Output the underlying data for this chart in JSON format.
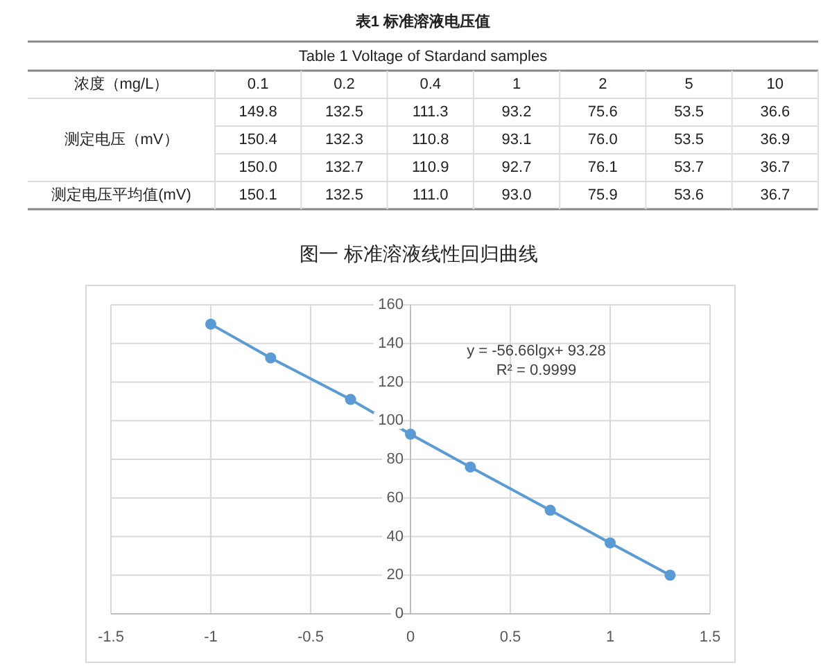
{
  "chart_data": [
    {
      "type": "heatmap",
      "title": "表1 标准溶液电压值",
      "subtitle": "Table 1  Voltage of Stardand samples",
      "xlabel": "浓度（mg/L）",
      "categories": [
        "0.1",
        "0.2",
        "0.4",
        "1",
        "2",
        "5",
        "10"
      ],
      "y_categories": [
        null,
        "测定电压（mV）",
        null,
        "测定电压平均值(mV)"
      ],
      "cells": [
        [
          149.8,
          132.5,
          111.3,
          93.2,
          75.6,
          53.5,
          36.6
        ],
        [
          150.4,
          132.3,
          110.8,
          93.1,
          76.0,
          53.5,
          36.9
        ],
        [
          150.0,
          132.7,
          110.9,
          92.7,
          76.1,
          53.7,
          36.7
        ],
        [
          150.1,
          132.5,
          111.0,
          93.0,
          75.9,
          53.6,
          36.7
        ]
      ],
      "cell_labels": [
        [
          "149.8",
          "132.5",
          "111.3",
          "93.2",
          "75.6",
          "53.5",
          "36.6"
        ],
        [
          "150.4",
          "132.3",
          "110.8",
          "93.1",
          "76.0",
          "53.5",
          "36.9"
        ],
        [
          "150.0",
          "132.7",
          "110.9",
          "92.7",
          "76.1",
          "53.7",
          "36.7"
        ],
        [
          "150.1",
          "132.5",
          "111.0",
          "93.0",
          "75.9",
          "53.6",
          "36.7"
        ]
      ],
      "data_labels": true
    },
    {
      "type": "line",
      "title": "图一  标准溶液线性回归曲线",
      "x": [
        -1,
        -0.7,
        -0.3,
        0,
        0.3,
        0.7,
        1,
        1.3
      ],
      "series": [
        {
          "color": "#5b9bd5",
          "values": [
            150,
            132.5,
            111,
            93,
            76,
            53.6,
            36.7,
            20
          ]
        }
      ],
      "marker": "circle",
      "xlim": [
        -1.5,
        1.5
      ],
      "xticks": [
        -1.5,
        -1,
        -0.5,
        0,
        0.5,
        1,
        1.5
      ],
      "ylim": [
        0,
        160
      ],
      "yticks": [
        0,
        20,
        40,
        60,
        80,
        100,
        120,
        140,
        160
      ],
      "grid": true,
      "annotations": [
        "y = -56.66lgx+ 93.28",
        "R² = 0.9999"
      ]
    }
  ]
}
